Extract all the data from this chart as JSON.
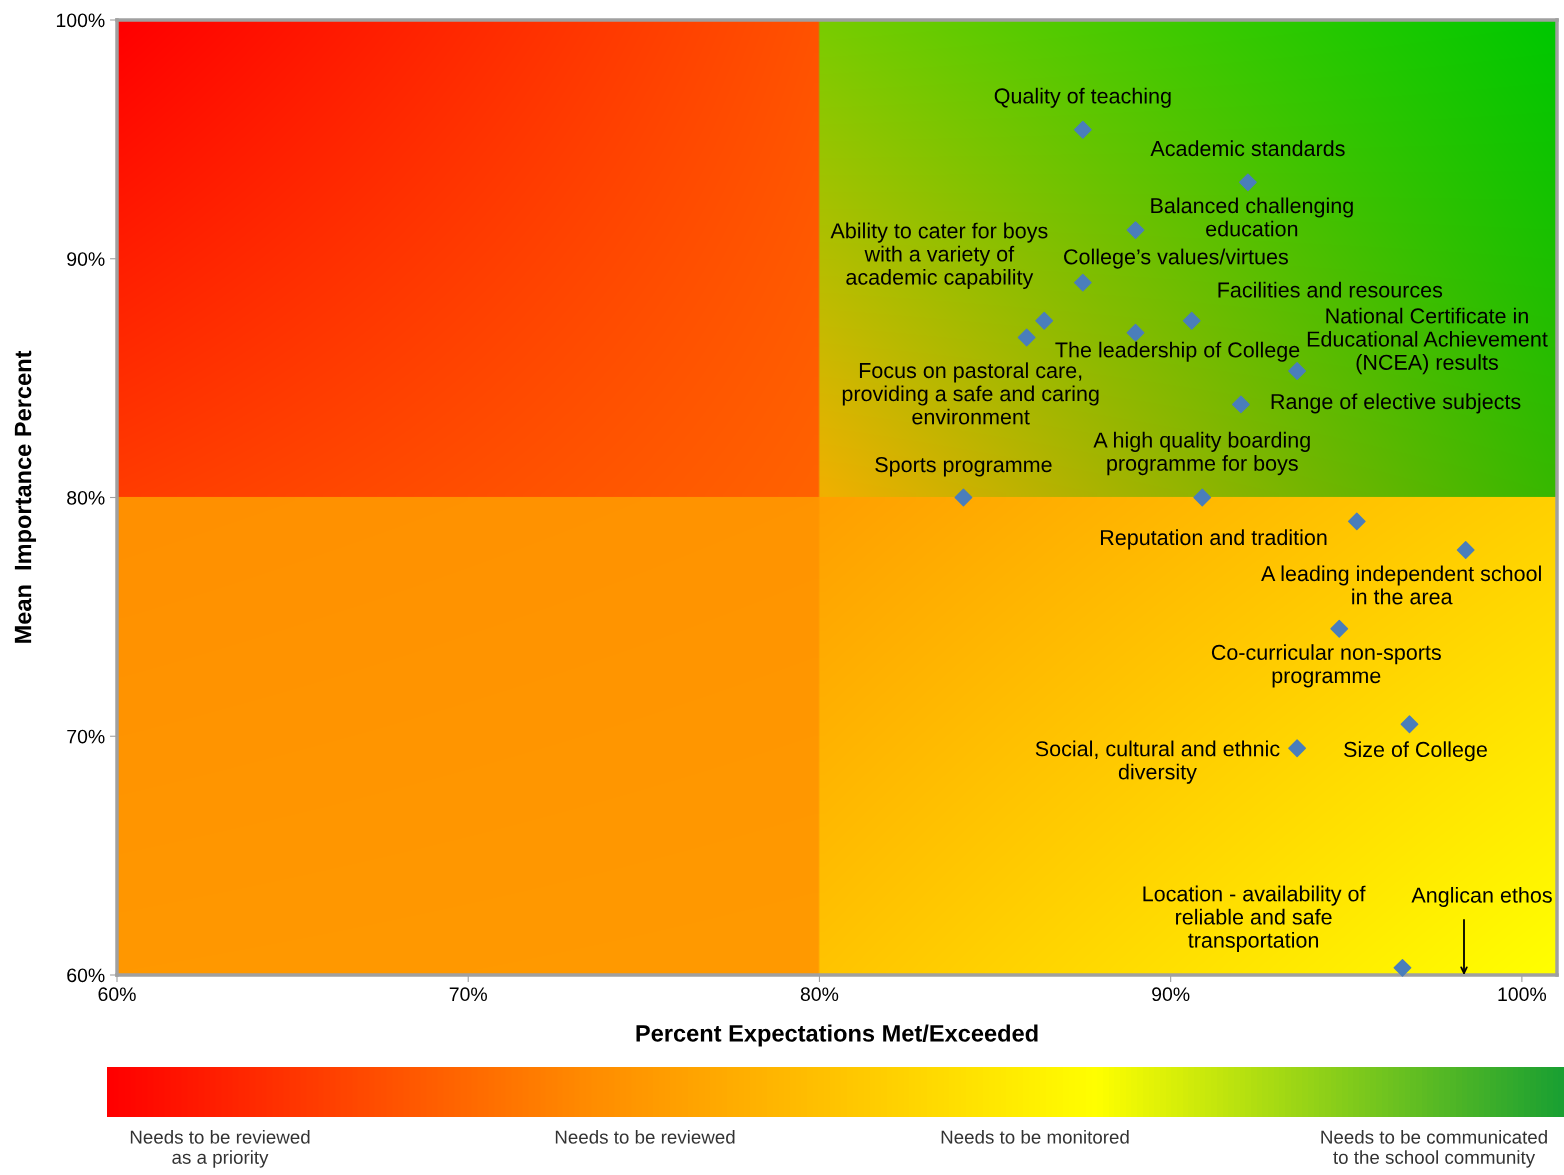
{
  "chart_data": {
    "type": "scatter",
    "xlabel": "Percent Expectations Met/Exceeded",
    "ylabel": "Mean  Importance Percent",
    "xlim": [
      60,
      101
    ],
    "ylim": [
      60,
      100
    ],
    "xticks": [
      {
        "value": 60,
        "label": "60%"
      },
      {
        "value": 70,
        "label": "70%"
      },
      {
        "value": 80,
        "label": "80%"
      },
      {
        "value": 90,
        "label": "90%"
      },
      {
        "value": 100,
        "label": "100%"
      }
    ],
    "yticks": [
      {
        "value": 60,
        "label": "60%"
      },
      {
        "value": 70,
        "label": "70%"
      },
      {
        "value": 80,
        "label": "80%"
      },
      {
        "value": 90,
        "label": "90%"
      },
      {
        "value": 100,
        "label": "100%"
      }
    ],
    "grid": false,
    "legend": false,
    "marker": "diamond",
    "series": [
      {
        "color": "#4a7ebb",
        "x": [
          87.5,
          92.2,
          89.0,
          87.5,
          86.4,
          85.9,
          90.6,
          89.0,
          93.6,
          92.0,
          84.1,
          90.9,
          95.3,
          98.4,
          94.8,
          96.8,
          93.6,
          96.6
        ],
        "values": [
          95.4,
          93.2,
          91.2,
          89.0,
          87.4,
          86.7,
          87.4,
          86.9,
          85.3,
          83.9,
          80.0,
          80.0,
          79.0,
          77.8,
          74.5,
          70.5,
          69.5,
          60.3
        ],
        "value_labels": [
          "Quality of teaching",
          "Academic standards",
          "Balanced challenging\neducation",
          "College’s values/virtues",
          "Ability to cater for boys\nwith a variety of\nacademic capability",
          "Focus on pastoral care,\nproviding a safe and caring\nenvironment",
          "Facilities and resources",
          "The leadership of College",
          "National Certificate in\nEducational Achievement\n(NCEA) results",
          "Range of elective subjects",
          "Sports programme",
          "A high quality boarding\nprogramme for boys",
          "Reputation and tradition",
          "A leading independent school\nin the area",
          "Co-curricular non-sports\nprogramme",
          "Size of College",
          "Social, cultural and ethnic\ndiversity",
          "Location - availability of\nreliable and safe\ntransportation"
        ]
      }
    ],
    "annotations": [
      "Anglican ethos",
      "Needs to be reviewed\nas a priority",
      "Needs to be reviewed",
      "Needs to be monitored",
      "Needs to be communicated\nto the school community"
    ]
  }
}
